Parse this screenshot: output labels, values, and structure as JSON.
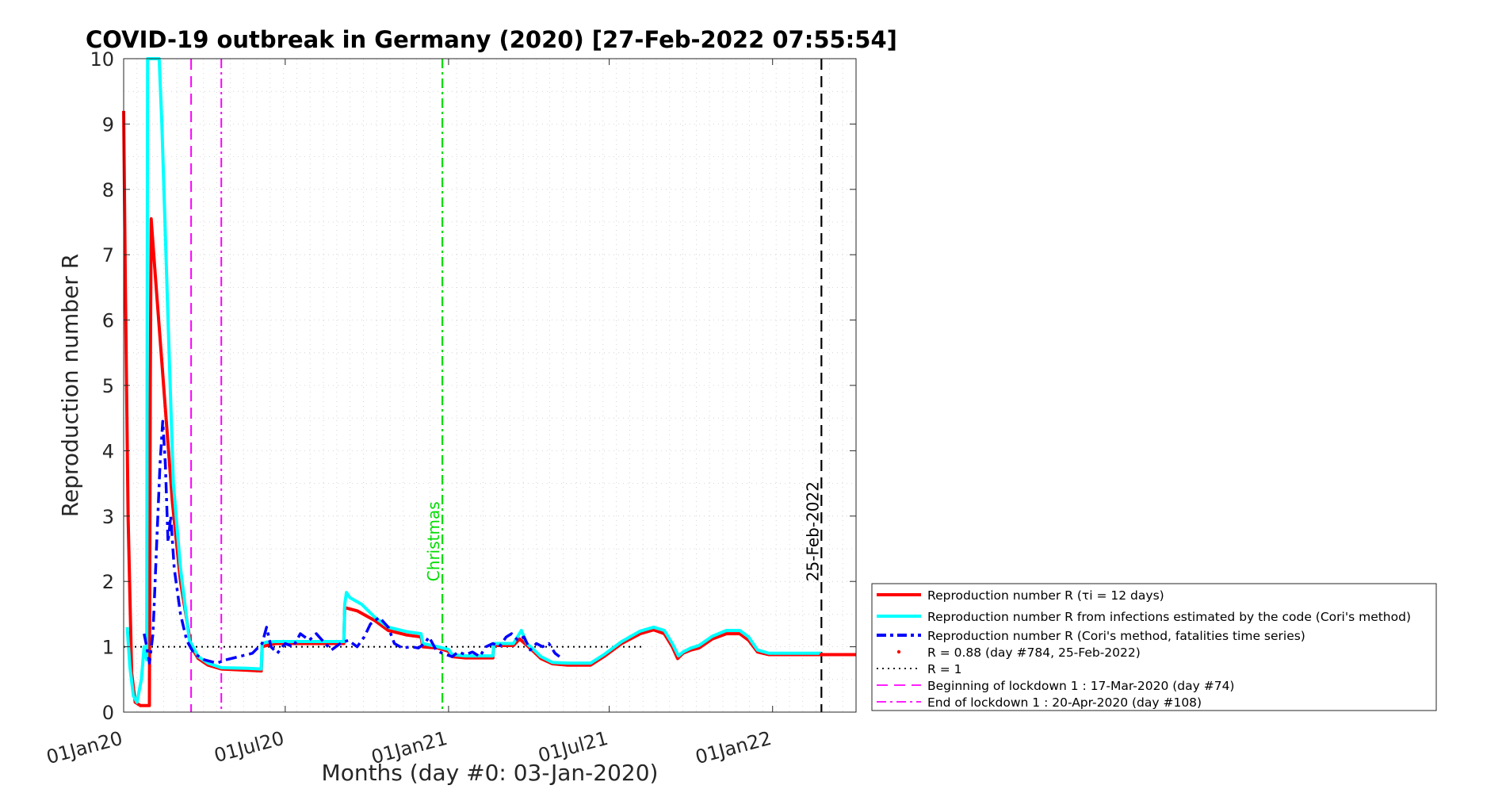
{
  "chart_data": {
    "type": "line",
    "title": "COVID-19 outbreak in Germany (2020) [27-Feb-2022 07:55:54]",
    "xlabel": "Months (day #0: 03-Jan-2020)",
    "ylabel": "Reproduction number R",
    "xlim": [
      "2020-01-01",
      "2022-04-05"
    ],
    "ylim": [
      0,
      10
    ],
    "yticks": [
      0,
      1,
      2,
      3,
      4,
      5,
      6,
      7,
      8,
      9,
      10
    ],
    "xticks": [
      {
        "date": "2020-01-01",
        "label": "01Jan20"
      },
      {
        "date": "2020-07-01",
        "label": "01Jul20"
      },
      {
        "date": "2021-01-01",
        "label": "01Jan21"
      },
      {
        "date": "2021-07-01",
        "label": "01Jul21"
      },
      {
        "date": "2022-01-01",
        "label": "01Jan22"
      }
    ],
    "grid": true,
    "legend_position": "right",
    "series": [
      {
        "name": "Reproduction number R (τi = 12 days)",
        "color": "#ff0000",
        "style": "solid",
        "points": [
          [
            "2020-01-01",
            9.2
          ],
          [
            "2020-01-03",
            6.5
          ],
          [
            "2020-01-06",
            3.0
          ],
          [
            "2020-01-10",
            0.6
          ],
          [
            "2020-01-14",
            0.15
          ],
          [
            "2020-01-20",
            0.1
          ],
          [
            "2020-01-30",
            0.1
          ],
          [
            "2020-01-31",
            5.0
          ],
          [
            "2020-02-01",
            7.55
          ],
          [
            "2020-02-05",
            6.8
          ],
          [
            "2020-02-15",
            5.0
          ],
          [
            "2020-02-25",
            3.2
          ],
          [
            "2020-03-05",
            2.0
          ],
          [
            "2020-03-17",
            1.0
          ],
          [
            "2020-03-25",
            0.82
          ],
          [
            "2020-04-05",
            0.72
          ],
          [
            "2020-04-20",
            0.66
          ],
          [
            "2020-05-20",
            0.64
          ],
          [
            "2020-06-04",
            0.63
          ],
          [
            "2020-06-05",
            1.0
          ],
          [
            "2020-06-10",
            1.02
          ],
          [
            "2020-06-20",
            1.05
          ],
          [
            "2020-07-20",
            1.05
          ],
          [
            "2020-08-20",
            1.05
          ],
          [
            "2020-09-05",
            1.05
          ],
          [
            "2020-09-06",
            1.6
          ],
          [
            "2020-09-20",
            1.55
          ],
          [
            "2020-10-10",
            1.4
          ],
          [
            "2020-10-25",
            1.25
          ],
          [
            "2020-11-15",
            1.18
          ],
          [
            "2020-12-01",
            1.15
          ],
          [
            "2020-12-03",
            1.0
          ],
          [
            "2020-12-20",
            0.98
          ],
          [
            "2021-01-01",
            0.93
          ],
          [
            "2021-01-05",
            0.85
          ],
          [
            "2021-01-20",
            0.83
          ],
          [
            "2021-02-20",
            0.83
          ],
          [
            "2021-02-21",
            1.02
          ],
          [
            "2021-03-15",
            1.02
          ],
          [
            "2021-03-22",
            1.12
          ],
          [
            "2021-03-28",
            1.05
          ],
          [
            "2021-04-05",
            0.95
          ],
          [
            "2021-04-15",
            0.82
          ],
          [
            "2021-04-28",
            0.74
          ],
          [
            "2021-05-15",
            0.72
          ],
          [
            "2021-06-10",
            0.72
          ],
          [
            "2021-06-25",
            0.85
          ],
          [
            "2021-07-15",
            1.05
          ],
          [
            "2021-08-05",
            1.2
          ],
          [
            "2021-08-20",
            1.26
          ],
          [
            "2021-09-01",
            1.2
          ],
          [
            "2021-09-10",
            1.0
          ],
          [
            "2021-09-16",
            0.82
          ],
          [
            "2021-09-22",
            0.9
          ],
          [
            "2021-10-01",
            0.95
          ],
          [
            "2021-10-10",
            0.98
          ],
          [
            "2021-10-25",
            1.12
          ],
          [
            "2021-11-10",
            1.2
          ],
          [
            "2021-11-25",
            1.2
          ],
          [
            "2021-12-05",
            1.1
          ],
          [
            "2021-12-15",
            0.92
          ],
          [
            "2021-12-28",
            0.88
          ],
          [
            "2022-02-25",
            0.88
          ],
          [
            "2022-04-05",
            0.88
          ]
        ]
      },
      {
        "name": "Reproduction number R from infections estimated by the code (Cori's method)",
        "color": "#00ffff",
        "style": "solid",
        "points": [
          [
            "2020-01-05",
            1.3
          ],
          [
            "2020-01-08",
            0.7
          ],
          [
            "2020-01-12",
            0.25
          ],
          [
            "2020-01-16",
            0.15
          ],
          [
            "2020-01-21",
            0.5
          ],
          [
            "2020-01-24",
            1.0
          ],
          [
            "2020-01-27",
            0.8
          ],
          [
            "2020-01-28",
            10.2
          ],
          [
            "2020-02-05",
            10.2
          ],
          [
            "2020-02-10",
            10.2
          ],
          [
            "2020-02-13",
            9.0
          ],
          [
            "2020-02-20",
            6.0
          ],
          [
            "2020-02-26",
            3.5
          ],
          [
            "2020-03-05",
            2.2
          ],
          [
            "2020-03-15",
            1.1
          ],
          [
            "2020-03-25",
            0.85
          ],
          [
            "2020-04-05",
            0.75
          ],
          [
            "2020-04-20",
            0.68
          ],
          [
            "2020-05-20",
            0.67
          ],
          [
            "2020-06-04",
            0.66
          ],
          [
            "2020-06-05",
            1.05
          ],
          [
            "2020-06-10",
            1.07
          ],
          [
            "2020-06-20",
            1.08
          ],
          [
            "2020-07-20",
            1.08
          ],
          [
            "2020-08-20",
            1.08
          ],
          [
            "2020-09-05",
            1.08
          ],
          [
            "2020-09-06",
            1.65
          ],
          [
            "2020-09-08",
            1.83
          ],
          [
            "2020-09-12",
            1.75
          ],
          [
            "2020-09-25",
            1.65
          ],
          [
            "2020-10-10",
            1.45
          ],
          [
            "2020-10-25",
            1.3
          ],
          [
            "2020-11-15",
            1.23
          ],
          [
            "2020-12-01",
            1.2
          ],
          [
            "2020-12-03",
            1.05
          ],
          [
            "2020-12-20",
            1.0
          ],
          [
            "2021-01-01",
            0.96
          ],
          [
            "2021-01-05",
            0.88
          ],
          [
            "2021-01-20",
            0.86
          ],
          [
            "2021-02-20",
            0.86
          ],
          [
            "2021-02-21",
            1.05
          ],
          [
            "2021-03-15",
            1.05
          ],
          [
            "2021-03-24",
            1.25
          ],
          [
            "2021-03-30",
            1.05
          ],
          [
            "2021-04-05",
            0.98
          ],
          [
            "2021-04-15",
            0.85
          ],
          [
            "2021-04-28",
            0.76
          ],
          [
            "2021-05-15",
            0.75
          ],
          [
            "2021-06-10",
            0.75
          ],
          [
            "2021-06-25",
            0.88
          ],
          [
            "2021-07-15",
            1.08
          ],
          [
            "2021-08-05",
            1.24
          ],
          [
            "2021-08-20",
            1.3
          ],
          [
            "2021-09-01",
            1.25
          ],
          [
            "2021-09-10",
            1.05
          ],
          [
            "2021-09-17",
            0.86
          ],
          [
            "2021-09-22",
            0.92
          ],
          [
            "2021-10-01",
            0.98
          ],
          [
            "2021-10-10",
            1.02
          ],
          [
            "2021-10-25",
            1.16
          ],
          [
            "2021-11-10",
            1.25
          ],
          [
            "2021-11-25",
            1.25
          ],
          [
            "2021-12-05",
            1.15
          ],
          [
            "2021-12-15",
            0.95
          ],
          [
            "2021-12-28",
            0.9
          ],
          [
            "2022-02-25",
            0.9
          ]
        ]
      },
      {
        "name": "Reproduction number R (Cori's method, fatalities time series)",
        "color": "#0000ff",
        "style": "dashdot",
        "points": [
          [
            "2020-01-24",
            1.2
          ],
          [
            "2020-01-27",
            1.0
          ],
          [
            "2020-01-30",
            0.75
          ],
          [
            "2020-02-03",
            1.2
          ],
          [
            "2020-02-07",
            2.5
          ],
          [
            "2020-02-11",
            3.8
          ],
          [
            "2020-02-14",
            4.45
          ],
          [
            "2020-02-17",
            3.8
          ],
          [
            "2020-02-20",
            2.6
          ],
          [
            "2020-02-23",
            3.0
          ],
          [
            "2020-02-27",
            2.2
          ],
          [
            "2020-03-05",
            1.5
          ],
          [
            "2020-03-12",
            1.1
          ],
          [
            "2020-03-20",
            0.9
          ],
          [
            "2020-04-01",
            0.8
          ],
          [
            "2020-04-15",
            0.75
          ],
          [
            "2020-04-25",
            0.8
          ],
          [
            "2020-05-10",
            0.85
          ],
          [
            "2020-05-25",
            0.9
          ],
          [
            "2020-06-05",
            1.05
          ],
          [
            "2020-06-10",
            1.3
          ],
          [
            "2020-06-15",
            1.0
          ],
          [
            "2020-06-22",
            0.9
          ],
          [
            "2020-07-01",
            1.05
          ],
          [
            "2020-07-10",
            1.0
          ],
          [
            "2020-07-18",
            1.2
          ],
          [
            "2020-07-28",
            1.1
          ],
          [
            "2020-08-05",
            1.2
          ],
          [
            "2020-08-15",
            1.05
          ],
          [
            "2020-08-22",
            0.95
          ],
          [
            "2020-09-01",
            1.05
          ],
          [
            "2020-09-10",
            1.1
          ],
          [
            "2020-09-20",
            1.0
          ],
          [
            "2020-09-28",
            1.15
          ],
          [
            "2020-10-05",
            1.35
          ],
          [
            "2020-10-15",
            1.45
          ],
          [
            "2020-10-25",
            1.3
          ],
          [
            "2020-11-01",
            1.05
          ],
          [
            "2020-11-10",
            0.98
          ],
          [
            "2020-11-20",
            1.0
          ],
          [
            "2020-11-28",
            0.98
          ],
          [
            "2020-12-05",
            1.05
          ],
          [
            "2020-12-10",
            1.15
          ],
          [
            "2020-12-18",
            0.95
          ],
          [
            "2020-12-25",
            0.9
          ],
          [
            "2021-01-05",
            0.85
          ],
          [
            "2021-01-12",
            0.92
          ],
          [
            "2021-01-20",
            0.88
          ],
          [
            "2021-01-28",
            0.92
          ],
          [
            "2021-02-05",
            0.85
          ],
          [
            "2021-02-12",
            1.0
          ],
          [
            "2021-02-20",
            1.05
          ],
          [
            "2021-02-27",
            1.0
          ],
          [
            "2021-03-07",
            1.15
          ],
          [
            "2021-03-13",
            1.2
          ],
          [
            "2021-03-20",
            1.1
          ],
          [
            "2021-03-27",
            1.15
          ],
          [
            "2021-04-03",
            0.95
          ],
          [
            "2021-04-10",
            1.05
          ],
          [
            "2021-04-17",
            1.0
          ],
          [
            "2021-04-24",
            1.05
          ],
          [
            "2021-05-01",
            0.9
          ],
          [
            "2021-05-06",
            0.85
          ]
        ]
      }
    ],
    "markers": [
      {
        "name": "R = 0.88 (day #784, 25-Feb-2022)",
        "date": "2022-02-25",
        "value": 0.88,
        "color": "#ff0000"
      }
    ],
    "reference_lines": [
      {
        "name": "R = 1",
        "type": "horizontal",
        "value": 1,
        "from": "2020-01-01",
        "to": "2021-08-10",
        "color": "#000000",
        "style": "dotted"
      },
      {
        "name": "Beginning of lockdown 1 : 17-Mar-2020 (day #74)",
        "type": "vertical",
        "date": "2020-03-17",
        "color": "#ff00ff",
        "style": "dashed"
      },
      {
        "name": "End of lockdown 1 : 20-Apr-2020 (day #108)",
        "type": "vertical",
        "date": "2020-04-20",
        "color": "#ff00ff",
        "style": "dashdot"
      }
    ],
    "annotations": [
      {
        "text": "Christmas",
        "date": "2020-12-25",
        "color": "#00dd00",
        "style": "dashdot",
        "label_value": 2.0
      },
      {
        "text": "25-Feb-2022",
        "date": "2022-02-25",
        "color": "#000000",
        "style": "dashed",
        "label_value": 2.0
      }
    ]
  }
}
